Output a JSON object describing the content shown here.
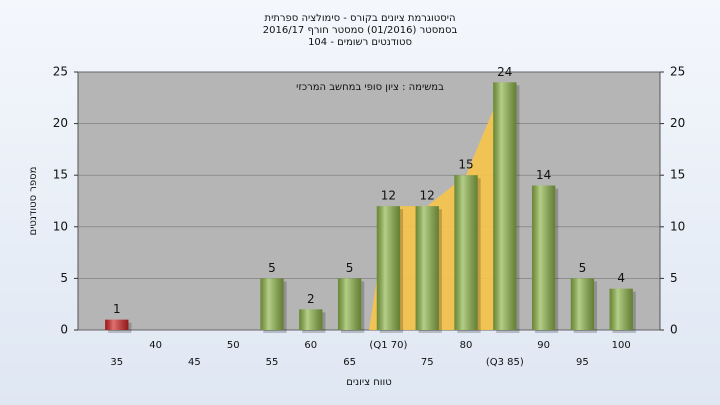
{
  "chart_data": {
    "type": "bar",
    "title": [
      "היסטוגרמת ציונים בקורס - סימולציה ספרתית",
      "בסמסטר (01/2016)  סמסטר חורף 2016/17",
      "סטודנטים רשומים - 104"
    ],
    "annotation": "במשימה : ציון סופי במחשב המרכזי",
    "y_label": "מספר סטודנטים",
    "x_label": "טווח ציונים",
    "categories": [
      "35",
      "40",
      "45",
      "50",
      "55",
      "60",
      "65",
      "(Q1 70)",
      "75",
      "80",
      "(Q3 85)",
      "90",
      "95",
      "100"
    ],
    "values": [
      1,
      0,
      0,
      0,
      5,
      2,
      5,
      12,
      12,
      15,
      24,
      14,
      5,
      4
    ],
    "colors": [
      "#d02424",
      "#8db548",
      "#8db548",
      "#8db548",
      "#8db548",
      "#8db548",
      "#8db548",
      "#8db548",
      "#8db548",
      "#8db548",
      "#8db548",
      "#8db548",
      "#8db548",
      "#8db548"
    ],
    "band": {
      "from": 7,
      "to": 10,
      "color": "#f7c44a"
    },
    "ylim": [
      0,
      25
    ],
    "yticks": [
      0,
      5,
      10,
      15,
      20,
      25
    ],
    "grid": true,
    "right_axis": true
  }
}
